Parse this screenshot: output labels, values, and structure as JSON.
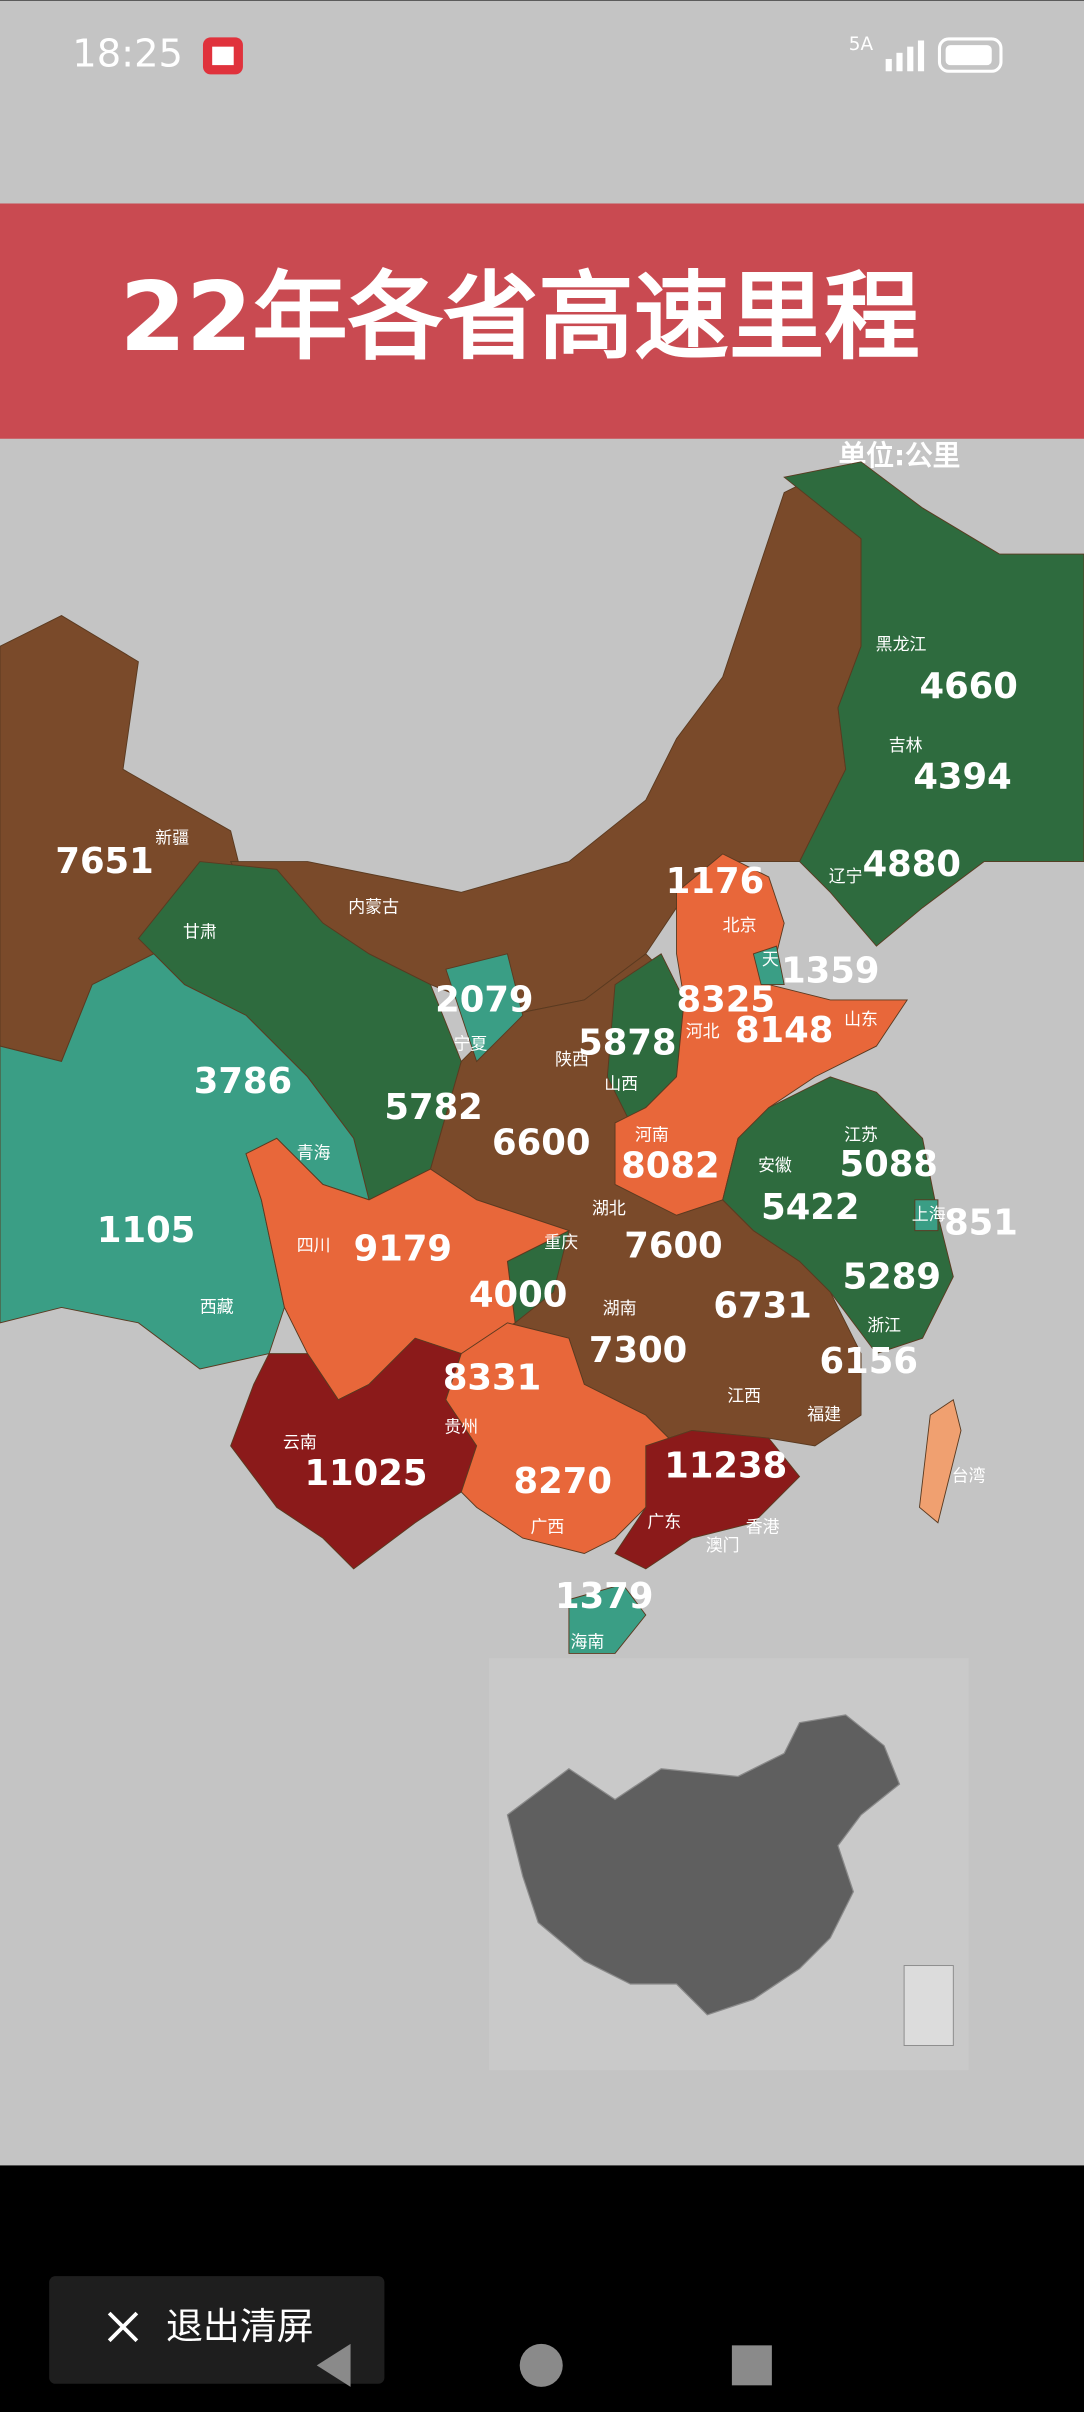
{
  "status_bar": {
    "time": "18:25",
    "network": "5A"
  },
  "header": {
    "title": "22年各省高速里程",
    "unit": "单位:公里"
  },
  "map": {
    "region_labels": [
      "新疆",
      "内蒙古",
      "甘肃",
      "青海",
      "西藏",
      "四川",
      "云南",
      "贵州",
      "广西",
      "广东",
      "海南",
      "香港",
      "澳门",
      "台湾",
      "福建",
      "江西",
      "浙江",
      "上海",
      "江苏",
      "安徽",
      "湖南",
      "湖北",
      "重庆",
      "河南",
      "陕西",
      "宁夏",
      "山西",
      "河北",
      "北京",
      "天",
      "山东",
      "辽宁",
      "吉林",
      "黑龙江"
    ],
    "values": [
      7651,
      3786,
      1105,
      9179,
      11025,
      8331,
      8270,
      11238,
      1379,
      6156,
      6731,
      5289,
      851,
      5088,
      5422,
      7300,
      7600,
      4000,
      8082,
      6600,
      2079,
      5782,
      5878,
      8325,
      1176,
      1359,
      8148,
      4880,
      4394,
      4660
    ]
  },
  "button": {
    "label": "退出清屏"
  }
}
